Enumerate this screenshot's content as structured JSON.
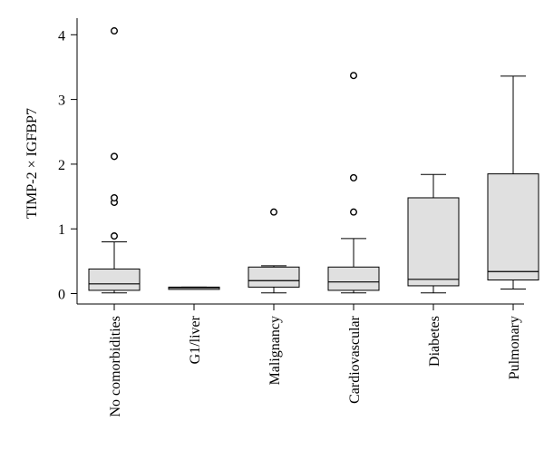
{
  "chart_data": {
    "type": "boxplot",
    "ylabel": "TIMP-2 × IGFBP7",
    "yticks": [
      0,
      1,
      2,
      3,
      4
    ],
    "ylim": [
      -0.1,
      4.2
    ],
    "categories": [
      "No comorbidities",
      "G1/liver",
      "Malignancy",
      "Cardiovascular",
      "Diabetes",
      "Pulmonary"
    ],
    "boxes": [
      {
        "category": "No comorbidities",
        "whisker_low": 0.01,
        "q1": 0.05,
        "median": 0.15,
        "q3": 0.38,
        "whisker_high": 0.8,
        "outliers": [
          0.89,
          1.41,
          1.48,
          2.12,
          4.06
        ]
      },
      {
        "category": "G1/liver",
        "whisker_low": 0.07,
        "q1": 0.07,
        "median": 0.09,
        "q3": 0.1,
        "whisker_high": 0.1,
        "outliers": []
      },
      {
        "category": "Malignancy",
        "whisker_low": 0.01,
        "q1": 0.1,
        "median": 0.2,
        "q3": 0.41,
        "whisker_high": 0.43,
        "outliers": [
          1.26
        ]
      },
      {
        "category": "Cardiovascular",
        "whisker_low": 0.01,
        "q1": 0.05,
        "median": 0.18,
        "q3": 0.41,
        "whisker_high": 0.85,
        "outliers": [
          1.26,
          1.79,
          3.37
        ]
      },
      {
        "category": "Diabetes",
        "whisker_low": 0.01,
        "q1": 0.12,
        "median": 0.22,
        "q3": 1.48,
        "whisker_high": 1.84,
        "outliers": []
      },
      {
        "category": "Pulmonary",
        "whisker_low": 0.07,
        "q1": 0.21,
        "median": 0.34,
        "q3": 1.85,
        "whisker_high": 3.36,
        "outliers": []
      }
    ]
  }
}
